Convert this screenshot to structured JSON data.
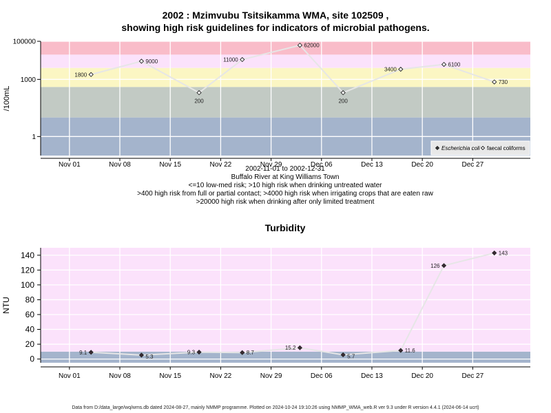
{
  "chart_data": [
    {
      "type": "line",
      "title_line1": "2002 : Mzimvubu Tsitsikamma WMA, site 102509 ,",
      "title_line2": "showing high risk guidelines for indicators of microbial pathogens.",
      "ylabel": "/100mL",
      "yscale": "log",
      "ylim": [
        0.1,
        100000
      ],
      "yticks": [
        {
          "value": 1,
          "label": "1"
        },
        {
          "value": 1000,
          "label": "1000"
        },
        {
          "value": 100000,
          "label": "100000"
        }
      ],
      "xlim": [
        "2002-10-28",
        "2003-01-04"
      ],
      "xticks": [
        {
          "date": "2002-11-01",
          "label": "Nov 01"
        },
        {
          "date": "2002-11-08",
          "label": "Nov 08"
        },
        {
          "date": "2002-11-15",
          "label": "Nov 15"
        },
        {
          "date": "2002-11-22",
          "label": "Nov 22"
        },
        {
          "date": "2002-11-29",
          "label": "Nov 29"
        },
        {
          "date": "2002-12-06",
          "label": "Dec 06"
        },
        {
          "date": "2002-12-13",
          "label": "Dec 13"
        },
        {
          "date": "2002-12-20",
          "label": "Dec 20"
        },
        {
          "date": "2002-12-27",
          "label": "Dec 27"
        }
      ],
      "risk_bands": [
        {
          "from": 0.1,
          "to": 10,
          "color": "#a4b4cc"
        },
        {
          "from": 10,
          "to": 400,
          "color": "#c2cac4"
        },
        {
          "from": 400,
          "to": 4000,
          "color": "#fbf6c3"
        },
        {
          "from": 4000,
          "to": 20000,
          "color": "#fbe2fb"
        },
        {
          "from": 20000,
          "to": 100000,
          "color": "#f9bcc9"
        }
      ],
      "series": [
        {
          "name": "faecal coliforms",
          "marker": "open-diamond",
          "points": [
            {
              "x": "2002-11-04",
              "y": 1800,
              "label": "1800"
            },
            {
              "x": "2002-11-11",
              "y": 9000,
              "label": "9000"
            },
            {
              "x": "2002-11-19",
              "y": 200,
              "label": "200"
            },
            {
              "x": "2002-11-25",
              "y": 11000,
              "label": "11000"
            },
            {
              "x": "2002-12-03",
              "y": 62000,
              "label": "62000"
            },
            {
              "x": "2002-12-09",
              "y": 200,
              "label": "200"
            },
            {
              "x": "2002-12-17",
              "y": 3400,
              "label": "3400"
            },
            {
              "x": "2002-12-23",
              "y": 6100,
              "label": "6100"
            },
            {
              "x": "2002-12-30",
              "y": 730,
              "label": "730"
            }
          ]
        }
      ],
      "legend": {
        "position": "bottom-right",
        "entries": [
          {
            "label": "Escherichia coli",
            "marker": "filled-diamond",
            "italic": true
          },
          {
            "label": "faecal coliforms",
            "marker": "open-diamond",
            "italic": false
          }
        ]
      },
      "caption": [
        "2002-11-01 to 2002-12-31",
        "Buffalo River at King Williams Town",
        "<=10 low-med risk; >10 high risk when drinking untreated water",
        ">400 high risk from full or partial contact; >4000 high risk when irrigating crops that are eaten raw",
        ">20000 high risk when drinking after only limited treatment"
      ]
    },
    {
      "type": "line",
      "title": "Turbidity",
      "ylabel": "NTU",
      "ylim": [
        -5,
        150
      ],
      "yticks": [
        0,
        20,
        40,
        60,
        80,
        100,
        120,
        140
      ],
      "xlim": [
        "2002-10-28",
        "2003-01-04"
      ],
      "xticks": [
        {
          "date": "2002-11-01",
          "label": "Nov 01"
        },
        {
          "date": "2002-11-08",
          "label": "Nov 08"
        },
        {
          "date": "2002-11-15",
          "label": "Nov 15"
        },
        {
          "date": "2002-11-22",
          "label": "Nov 22"
        },
        {
          "date": "2002-11-29",
          "label": "Nov 29"
        },
        {
          "date": "2002-12-06",
          "label": "Dec 06"
        },
        {
          "date": "2002-12-13",
          "label": "Dec 13"
        },
        {
          "date": "2002-12-20",
          "label": "Dec 20"
        },
        {
          "date": "2002-12-27",
          "label": "Dec 27"
        }
      ],
      "bands": [
        {
          "from": -5,
          "to": 10,
          "color": "#a4b4cc"
        },
        {
          "from": 10,
          "to": 150,
          "color": "#fbe2fb"
        }
      ],
      "series": [
        {
          "name": "",
          "marker": "filled-diamond",
          "points": [
            {
              "x": "2002-11-04",
              "y": 9.1,
              "label": "9.1"
            },
            {
              "x": "2002-11-11",
              "y": 5.3,
              "label": "5.3"
            },
            {
              "x": "2002-11-19",
              "y": 9.3,
              "label": "9.3"
            },
            {
              "x": "2002-11-25",
              "y": 8.7,
              "label": "8.7"
            },
            {
              "x": "2002-12-03",
              "y": 15.2,
              "label": "15.2"
            },
            {
              "x": "2002-12-09",
              "y": 5.7,
              "label": "5.7"
            },
            {
              "x": "2002-12-17",
              "y": 11.6,
              "label": "11.6"
            },
            {
              "x": "2002-12-23",
              "y": 126,
              "label": "126"
            },
            {
              "x": "2002-12-30",
              "y": 143,
              "label": "143"
            }
          ]
        }
      ]
    }
  ],
  "footer": "Data from D:/data_large/wq/wms.db dated 2024-08-27, mainly NMMP programme. Plotted on 2024-10-24 19:10:26 using NMMP_WMA_web.R ver 9.3 under R version 4.4.1 (2024-06-14 ucrt)"
}
